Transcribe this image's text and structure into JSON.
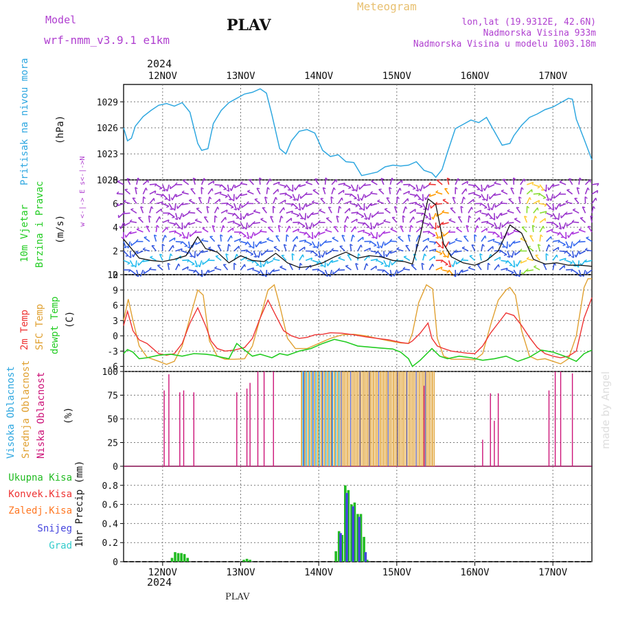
{
  "header": {
    "model_label": "Model",
    "model_name": "wrf-nmm_v3.9.1 e1km",
    "station_title": "PLAV",
    "meteogram_label": "Meteogram",
    "lonlat": "lon,lat (19.9312E, 42.6N)",
    "altitude": "Nadmorska Visina 933m",
    "model_altitude": "Nadmorska Visina u modelu 1003.18m",
    "year_top": "2024",
    "year_bottom": "2024",
    "footer_station": "PLAV",
    "watermark": "made by Angel"
  },
  "colors": {
    "pressure": "#2ea7e0",
    "t2m": "#ee3333",
    "sfc": "#e0a030",
    "dewpt": "#22cc22",
    "cloud_high": "#33bbee",
    "cloud_mid": "#e0a030",
    "cloud_low": "#cc1177",
    "rain_total": "#22bb22",
    "rain_conv": "#ee3333",
    "rain_strat": "#ff7722",
    "snow": "#4444dd",
    "graupel": "#33cccc",
    "title_purple": "#b040d0",
    "meteogram_tan": "#e8c070"
  },
  "chart_data": [
    {
      "type": "line",
      "panel": "pressure",
      "ylabel_lines": [
        "Pritisak na nivou mora",
        "(hPa)"
      ],
      "ylim": [
        1020,
        1031
      ],
      "yticks": [
        "1020",
        "1023",
        "1026",
        "1029"
      ],
      "xticks": [
        "12NOV",
        "13NOV",
        "14NOV",
        "15NOV",
        "16NOV",
        "17NOV"
      ],
      "x_unit": "days since 11 Nov 2024 00 UTC",
      "xlim": [
        11.5,
        17.5
      ],
      "series": [
        {
          "x": [
            11.5,
            11.55,
            11.6,
            11.65,
            11.75,
            11.85,
            11.95,
            12.05,
            12.15,
            12.25,
            12.35,
            12.45,
            12.5,
            12.58,
            12.65,
            12.75,
            12.85,
            12.95,
            13.05,
            13.15,
            13.25,
            13.33,
            13.4,
            13.5,
            13.58,
            13.65,
            13.75,
            13.85,
            13.95,
            14.05,
            14.15,
            14.25,
            14.35,
            14.45,
            14.55,
            14.65,
            14.75,
            14.85,
            14.95,
            15.05,
            15.15,
            15.25,
            15.35,
            15.45,
            15.5,
            15.58,
            15.65,
            15.75,
            15.85,
            15.95,
            16.05,
            16.15,
            16.25,
            16.35,
            16.45,
            16.5,
            16.6,
            16.7,
            16.8,
            16.9,
            17.0,
            17.1,
            17.2,
            17.25,
            17.3,
            17.4,
            17.5
          ],
          "y": [
            1026.0,
            1024.5,
            1024.8,
            1026.2,
            1027.3,
            1028.0,
            1028.6,
            1028.8,
            1028.5,
            1028.9,
            1027.8,
            1024.2,
            1023.4,
            1023.6,
            1026.5,
            1028.0,
            1028.9,
            1029.4,
            1029.9,
            1030.1,
            1030.5,
            1030.0,
            1027.5,
            1023.6,
            1023.0,
            1024.5,
            1025.6,
            1025.8,
            1025.4,
            1023.4,
            1022.7,
            1022.9,
            1022.1,
            1022.0,
            1020.5,
            1020.7,
            1020.9,
            1021.5,
            1021.7,
            1021.6,
            1021.7,
            1022.1,
            1021.1,
            1020.8,
            1020.3,
            1021.2,
            1023.2,
            1025.9,
            1026.4,
            1026.9,
            1026.6,
            1027.2,
            1025.6,
            1024.0,
            1024.2,
            1025.1,
            1026.3,
            1027.2,
            1027.6,
            1028.1,
            1028.4,
            1028.9,
            1029.4,
            1029.3,
            1027.0,
            1024.7,
            1022.3
          ]
        }
      ]
    },
    {
      "type": "line",
      "panel": "wind",
      "ylabel_lines": [
        "10m Vjetar",
        "Brzina i Pravac",
        "(m/s)"
      ],
      "compass_legend": "w <-|-> E  s<-|->N",
      "ylim": [
        0,
        8
      ],
      "yticks": [
        "0",
        "2",
        "4",
        "6",
        "8"
      ],
      "barb_levels": [
        0.4,
        1.2,
        2.0,
        2.8,
        3.6,
        4.4,
        5.2,
        6.0,
        6.8,
        7.6
      ],
      "barb_stations_per_day": 12,
      "series": [
        {
          "name": "speed",
          "x": [
            11.5,
            11.6,
            11.7,
            11.85,
            12.0,
            12.15,
            12.3,
            12.45,
            12.55,
            12.7,
            12.85,
            13.0,
            13.15,
            13.3,
            13.45,
            13.6,
            13.75,
            13.9,
            14.05,
            14.2,
            14.35,
            14.5,
            14.65,
            14.8,
            14.95,
            15.1,
            15.2,
            15.3,
            15.4,
            15.5,
            15.6,
            15.7,
            15.85,
            16.0,
            16.15,
            16.3,
            16.45,
            16.6,
            16.75,
            16.9,
            17.05,
            17.2,
            17.35,
            17.5
          ],
          "y": [
            3.0,
            2.2,
            1.4,
            1.2,
            1.1,
            1.3,
            1.6,
            3.2,
            2.2,
            1.9,
            1.0,
            1.6,
            1.2,
            1.1,
            1.8,
            1.0,
            0.6,
            0.7,
            1.0,
            1.5,
            1.9,
            1.4,
            1.6,
            1.5,
            1.2,
            1.1,
            0.9,
            3.3,
            6.4,
            5.9,
            2.6,
            1.5,
            1.0,
            0.8,
            1.2,
            2.0,
            4.2,
            3.5,
            1.3,
            0.9,
            1.0,
            0.8,
            0.8,
            0.7
          ]
        }
      ]
    },
    {
      "type": "line",
      "panel": "temperature",
      "ylabel_lines": [
        "2m Temp",
        "SFC Temp",
        "dewpt Temp",
        "(C)"
      ],
      "ylim": [
        -7,
        12
      ],
      "yticks": [
        "-6",
        "-3",
        "0",
        "3",
        "6",
        "9",
        "12"
      ],
      "series": [
        {
          "name": "2m Temp",
          "x": [
            11.5,
            11.55,
            11.62,
            11.7,
            11.8,
            11.95,
            12.05,
            12.15,
            12.25,
            12.35,
            12.45,
            12.55,
            12.62,
            12.7,
            12.8,
            12.92,
            13.05,
            13.15,
            13.25,
            13.35,
            13.45,
            13.55,
            13.65,
            13.75,
            13.85,
            13.95,
            14.05,
            14.15,
            14.3,
            14.45,
            14.6,
            14.75,
            14.9,
            15.05,
            15.15,
            15.2,
            15.3,
            15.4,
            15.45,
            15.52,
            15.6,
            15.7,
            15.8,
            15.9,
            16.0,
            16.1,
            16.2,
            16.3,
            16.4,
            16.5,
            16.6,
            16.7,
            16.8,
            16.9,
            17.0,
            17.1,
            17.2,
            17.3,
            17.4,
            17.5
          ],
          "y": [
            2.0,
            4.8,
            1.0,
            -0.8,
            -1.5,
            -3.5,
            -3.8,
            -3.5,
            -1.5,
            2.5,
            5.5,
            2.0,
            -1.0,
            -2.5,
            -3.0,
            -2.8,
            -2.3,
            -0.5,
            3.5,
            7.0,
            4.0,
            1.0,
            0.0,
            -0.5,
            -0.3,
            0.2,
            0.3,
            0.6,
            0.5,
            0.2,
            -0.2,
            -0.5,
            -0.8,
            -1.3,
            -1.5,
            -1.0,
            0.5,
            2.5,
            -0.5,
            -2.0,
            -2.5,
            -3.0,
            -3.2,
            -3.4,
            -3.5,
            -2.0,
            0.5,
            2.5,
            4.5,
            4.0,
            2.0,
            -0.3,
            -2.3,
            -3.5,
            -4.0,
            -4.3,
            -4.0,
            -3.0,
            3.5,
            7.5
          ]
        },
        {
          "name": "SFC Temp",
          "x": [
            11.5,
            11.56,
            11.62,
            11.7,
            11.8,
            11.95,
            12.05,
            12.15,
            12.25,
            12.35,
            12.45,
            12.52,
            12.6,
            12.7,
            12.8,
            12.92,
            13.05,
            13.15,
            13.25,
            13.35,
            13.43,
            13.5,
            13.6,
            13.7,
            13.85,
            14.0,
            14.15,
            14.3,
            14.45,
            14.6,
            14.75,
            14.9,
            15.05,
            15.15,
            15.2,
            15.28,
            15.38,
            15.46,
            15.52,
            15.6,
            15.7,
            15.8,
            15.9,
            16.0,
            16.1,
            16.2,
            16.3,
            16.4,
            16.45,
            16.52,
            16.6,
            16.7,
            16.8,
            16.9,
            17.0,
            17.1,
            17.2,
            17.3,
            17.4,
            17.45,
            17.5
          ],
          "y": [
            3.0,
            7.2,
            3.0,
            -2.0,
            -4.2,
            -5.0,
            -5.6,
            -5.0,
            -2.0,
            3.5,
            9.0,
            8.0,
            -1.0,
            -4.0,
            -4.6,
            -4.6,
            -4.5,
            -2.0,
            3.5,
            9.0,
            10.0,
            6.0,
            -0.5,
            -2.5,
            -2.5,
            -1.5,
            -0.5,
            0.2,
            0.3,
            0.0,
            -0.5,
            -1.0,
            -1.4,
            -1.5,
            0.5,
            6.5,
            10.0,
            9.2,
            -0.5,
            -4.0,
            -4.6,
            -4.6,
            -4.6,
            -4.7,
            -3.5,
            2.0,
            7.0,
            9.0,
            9.5,
            8.0,
            1.0,
            -4.0,
            -4.7,
            -4.5,
            -5.0,
            -5.5,
            -4.5,
            0.0,
            9.5,
            11.2,
            11.2
          ]
        },
        {
          "name": "dewpt Temp",
          "x": [
            11.5,
            11.55,
            11.62,
            11.7,
            11.8,
            11.95,
            12.1,
            12.25,
            12.4,
            12.55,
            12.65,
            12.75,
            12.85,
            12.95,
            13.05,
            13.15,
            13.25,
            13.4,
            13.5,
            13.6,
            13.75,
            13.9,
            14.05,
            14.2,
            14.35,
            14.5,
            14.65,
            14.8,
            14.95,
            15.05,
            15.15,
            15.2,
            15.3,
            15.45,
            15.55,
            15.65,
            15.8,
            15.95,
            16.1,
            16.25,
            16.4,
            16.55,
            16.7,
            16.85,
            17.0,
            17.15,
            17.3,
            17.4,
            17.5
          ],
          "y": [
            -3.5,
            -2.7,
            -3.2,
            -4.5,
            -4.3,
            -3.8,
            -3.6,
            -4.0,
            -3.5,
            -3.6,
            -3.8,
            -4.2,
            -4.5,
            -1.5,
            -2.8,
            -4.0,
            -3.6,
            -4.3,
            -3.5,
            -3.8,
            -3.0,
            -2.5,
            -1.5,
            -0.7,
            -1.2,
            -2.0,
            -2.2,
            -2.4,
            -2.6,
            -3.2,
            -4.5,
            -6.0,
            -4.8,
            -2.5,
            -4.0,
            -4.5,
            -4.0,
            -4.3,
            -4.8,
            -4.5,
            -4.0,
            -5.0,
            -4.2,
            -2.8,
            -3.2,
            -4.0,
            -5.0,
            -3.5,
            -2.8
          ]
        }
      ]
    },
    {
      "type": "bar",
      "panel": "cloud",
      "ylabel_lines": [
        "Visoka Oblacnost",
        "Srednja Oblacnost",
        "Niska Oblacnost",
        "(%)"
      ],
      "ylim": [
        0,
        100
      ],
      "yticks": [
        "0",
        "25",
        "50",
        "75",
        "100"
      ],
      "series": [
        {
          "name": "Niska Oblacnost",
          "x": [
            12.02,
            12.08,
            12.22,
            12.27,
            12.4,
            12.95,
            13.08,
            13.12,
            13.22,
            13.3,
            13.42,
            15.35,
            16.1,
            16.2,
            16.25,
            16.3,
            16.95,
            17.03,
            17.1,
            17.25
          ],
          "values": [
            80,
            97,
            78,
            80,
            78,
            78,
            82,
            88,
            100,
            100,
            100,
            85,
            28,
            77,
            48,
            77,
            80,
            100,
            100,
            98
          ]
        },
        {
          "name": "Srednja Oblacnost",
          "x_start": 13.78,
          "x_end": 15.5,
          "step": 0.042,
          "value": 100
        },
        {
          "name": "Visoka Oblacnost",
          "x_start": 13.78,
          "x_end": 14.25,
          "step": 0.042,
          "value": 100
        }
      ]
    },
    {
      "type": "bar",
      "panel": "precip",
      "ylabel_lines": [
        "1hr Precip (mm)"
      ],
      "legend": [
        "Ukupna Kisa",
        "Konvek.Kisa",
        "Zaledj.Kisa",
        "Snijeg",
        "Grad"
      ],
      "ylim": [
        0,
        1.0
      ],
      "yticks": [
        "0",
        "0.2",
        "0.4",
        "0.6",
        "0.8"
      ],
      "series": [
        {
          "name": "Ukupna Kisa",
          "x": [
            12.12,
            12.16,
            12.2,
            12.24,
            12.28,
            12.32,
            13.04,
            13.08,
            13.12,
            14.22,
            14.26,
            14.3,
            14.34,
            14.38,
            14.42,
            14.46,
            14.5,
            14.54,
            14.58,
            14.62
          ],
          "values": [
            0.04,
            0.1,
            0.09,
            0.09,
            0.08,
            0.04,
            0.02,
            0.03,
            0.02,
            0.11,
            0.32,
            0.28,
            0.8,
            0.75,
            0.6,
            0.62,
            0.5,
            0.5,
            0.26,
            0.02
          ]
        },
        {
          "name": "Snijeg",
          "x": [
            14.28,
            14.36,
            14.44,
            14.52,
            14.6
          ],
          "values": [
            0.3,
            0.72,
            0.58,
            0.47,
            0.1
          ]
        }
      ]
    }
  ]
}
